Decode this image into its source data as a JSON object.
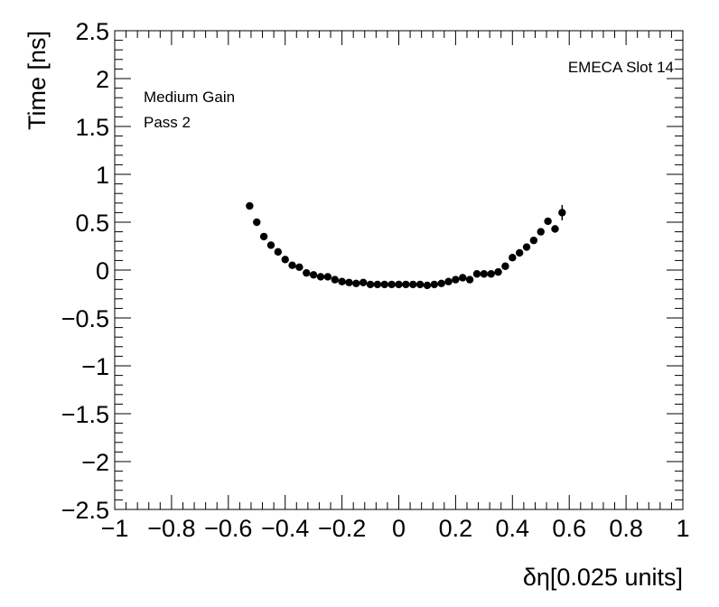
{
  "chart_data": {
    "type": "scatter",
    "xlabel": "δη[0.025 units]",
    "ylabel": "Time [ns]",
    "xlim": [
      -1,
      1
    ],
    "ylim": [
      -2.5,
      2.5
    ],
    "x_ticks": [
      -1,
      -0.8,
      -0.6,
      -0.4,
      -0.2,
      0,
      0.2,
      0.4,
      0.6,
      0.8,
      1
    ],
    "x_tick_labels": [
      "−1",
      "−0.8",
      "−0.6",
      "−0.4",
      "−0.2",
      "0",
      "0.2",
      "0.4",
      "0.6",
      "0.8",
      "1"
    ],
    "y_ticks": [
      -2.5,
      -2,
      -1.5,
      -1,
      -0.5,
      0,
      0.5,
      1,
      1.5,
      2,
      2.5
    ],
    "y_tick_labels": [
      "−2.5",
      "−2",
      "−1.5",
      "−1",
      "−0.5",
      "0",
      "0.5",
      "1",
      "1.5",
      "2",
      "2.5"
    ],
    "grid": false,
    "annotations": {
      "top_right": "EMECA Slot 14",
      "line1": "Medium Gain",
      "line2": "Pass 2"
    },
    "points": [
      {
        "x": -0.525,
        "y": 0.67,
        "err": 0.03
      },
      {
        "x": -0.5,
        "y": 0.5,
        "err": 0.02
      },
      {
        "x": -0.475,
        "y": 0.35,
        "err": 0.02
      },
      {
        "x": -0.45,
        "y": 0.26,
        "err": 0.02
      },
      {
        "x": -0.425,
        "y": 0.19,
        "err": 0.02
      },
      {
        "x": -0.4,
        "y": 0.11,
        "err": 0.02
      },
      {
        "x": -0.375,
        "y": 0.05,
        "err": 0.02
      },
      {
        "x": -0.35,
        "y": 0.03,
        "err": 0.02
      },
      {
        "x": -0.325,
        "y": -0.03,
        "err": 0.02
      },
      {
        "x": -0.3,
        "y": -0.05,
        "err": 0.02
      },
      {
        "x": -0.275,
        "y": -0.07,
        "err": 0.02
      },
      {
        "x": -0.25,
        "y": -0.07,
        "err": 0.02
      },
      {
        "x": -0.225,
        "y": -0.1,
        "err": 0.02
      },
      {
        "x": -0.2,
        "y": -0.12,
        "err": 0.02
      },
      {
        "x": -0.175,
        "y": -0.13,
        "err": 0.02
      },
      {
        "x": -0.15,
        "y": -0.14,
        "err": 0.02
      },
      {
        "x": -0.125,
        "y": -0.13,
        "err": 0.02
      },
      {
        "x": -0.1,
        "y": -0.15,
        "err": 0.02
      },
      {
        "x": -0.075,
        "y": -0.15,
        "err": 0.02
      },
      {
        "x": -0.05,
        "y": -0.15,
        "err": 0.02
      },
      {
        "x": -0.025,
        "y": -0.15,
        "err": 0.02
      },
      {
        "x": 0.0,
        "y": -0.15,
        "err": 0.02
      },
      {
        "x": 0.025,
        "y": -0.15,
        "err": 0.02
      },
      {
        "x": 0.05,
        "y": -0.15,
        "err": 0.02
      },
      {
        "x": 0.075,
        "y": -0.15,
        "err": 0.02
      },
      {
        "x": 0.1,
        "y": -0.16,
        "err": 0.02
      },
      {
        "x": 0.125,
        "y": -0.15,
        "err": 0.02
      },
      {
        "x": 0.15,
        "y": -0.14,
        "err": 0.02
      },
      {
        "x": 0.175,
        "y": -0.12,
        "err": 0.02
      },
      {
        "x": 0.2,
        "y": -0.1,
        "err": 0.02
      },
      {
        "x": 0.225,
        "y": -0.08,
        "err": 0.02
      },
      {
        "x": 0.25,
        "y": -0.1,
        "err": 0.02
      },
      {
        "x": 0.275,
        "y": -0.04,
        "err": 0.02
      },
      {
        "x": 0.3,
        "y": -0.04,
        "err": 0.02
      },
      {
        "x": 0.325,
        "y": -0.04,
        "err": 0.02
      },
      {
        "x": 0.35,
        "y": -0.02,
        "err": 0.02
      },
      {
        "x": 0.375,
        "y": 0.04,
        "err": 0.02
      },
      {
        "x": 0.4,
        "y": 0.13,
        "err": 0.02
      },
      {
        "x": 0.425,
        "y": 0.18,
        "err": 0.02
      },
      {
        "x": 0.45,
        "y": 0.24,
        "err": 0.02
      },
      {
        "x": 0.475,
        "y": 0.31,
        "err": 0.02
      },
      {
        "x": 0.5,
        "y": 0.4,
        "err": 0.03
      },
      {
        "x": 0.525,
        "y": 0.51,
        "err": 0.03
      },
      {
        "x": 0.55,
        "y": 0.43,
        "err": 0.04
      },
      {
        "x": 0.575,
        "y": 0.6,
        "err": 0.08
      }
    ]
  }
}
